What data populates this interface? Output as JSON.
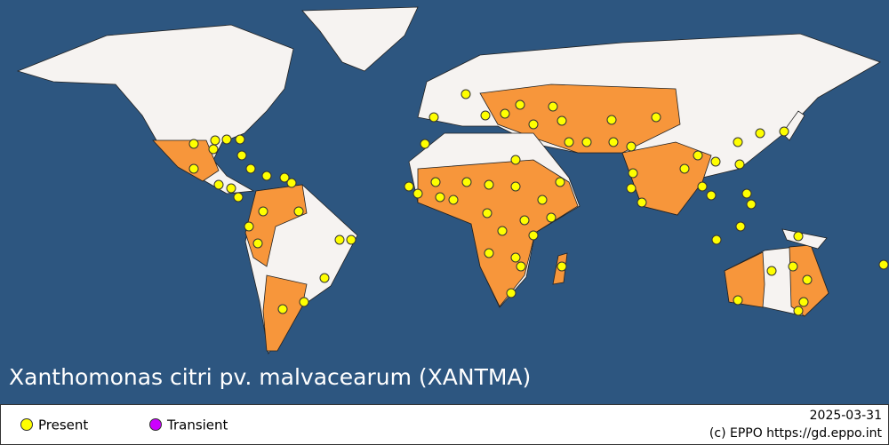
{
  "title": "Xanthomonas citri pv. malvacearum (XANTMA)",
  "legend": [
    {
      "label": "Present",
      "color": "#ffff00"
    },
    {
      "label": "Transient",
      "color": "#cc00ff"
    }
  ],
  "date": "2025-03-31",
  "credit": "(c) EPPO https://gd.eppo.int"
}
